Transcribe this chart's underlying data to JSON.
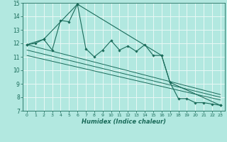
{
  "xlabel": "Humidex (Indice chaleur)",
  "bg_color": "#b2e8e0",
  "line_color": "#1a6b5a",
  "grid_color": "#e8f8f5",
  "ylim": [
    7,
    15
  ],
  "xlim": [
    -0.5,
    23.5
  ],
  "yticks": [
    7,
    8,
    9,
    10,
    11,
    12,
    13,
    14,
    15
  ],
  "xticks": [
    0,
    1,
    2,
    3,
    4,
    5,
    6,
    7,
    8,
    9,
    10,
    11,
    12,
    13,
    14,
    15,
    16,
    17,
    18,
    19,
    20,
    21,
    22,
    23
  ],
  "series1_x": [
    0,
    1,
    2,
    3,
    4,
    5,
    6,
    7,
    8,
    9,
    10,
    11,
    12,
    13,
    14,
    15,
    16,
    17,
    18,
    19,
    20,
    21,
    22,
    23
  ],
  "series1_y": [
    11.9,
    12.0,
    12.3,
    11.5,
    13.7,
    13.6,
    14.9,
    11.6,
    11.0,
    11.5,
    12.2,
    11.5,
    11.8,
    11.4,
    11.9,
    11.1,
    11.1,
    9.1,
    7.9,
    7.9,
    7.6,
    7.6,
    7.5,
    7.4
  ],
  "series2_x": [
    0,
    2,
    6,
    16,
    17,
    23
  ],
  "series2_y": [
    11.9,
    12.3,
    14.9,
    11.1,
    9.1,
    7.4
  ],
  "regression_lines": [
    {
      "x": [
        0,
        23
      ],
      "y": [
        11.9,
        8.2
      ]
    },
    {
      "x": [
        0,
        23
      ],
      "y": [
        11.5,
        8.0
      ]
    },
    {
      "x": [
        0,
        23
      ],
      "y": [
        11.1,
        7.8
      ]
    }
  ]
}
